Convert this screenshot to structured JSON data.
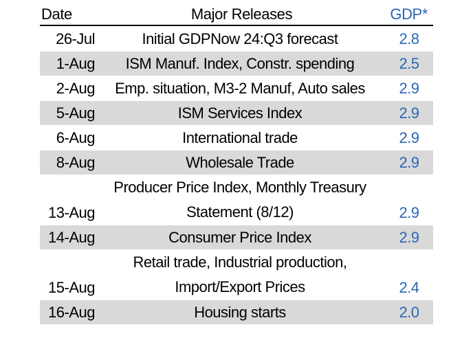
{
  "header": {
    "date": "Date",
    "releases": "Major Releases",
    "gdp": "GDP*"
  },
  "rows": [
    {
      "date": "26-Jul",
      "release_lines": [
        "Initial GDPNow 24:Q3 forecast"
      ],
      "gdp": "2.8",
      "shaded": false
    },
    {
      "date": "1-Aug",
      "release_lines": [
        "ISM Manuf. Index, Constr. spending"
      ],
      "gdp": "2.5",
      "shaded": true
    },
    {
      "date": "2-Aug",
      "release_lines": [
        "Emp. situation, M3-2 Manuf, Auto sales"
      ],
      "gdp": "2.9",
      "shaded": false
    },
    {
      "date": "5-Aug",
      "release_lines": [
        "ISM Services Index"
      ],
      "gdp": "2.9",
      "shaded": true
    },
    {
      "date": "6-Aug",
      "release_lines": [
        "International trade"
      ],
      "gdp": "2.9",
      "shaded": false
    },
    {
      "date": "8-Aug",
      "release_lines": [
        "Wholesale Trade"
      ],
      "gdp": "2.9",
      "shaded": true
    },
    {
      "date": "13-Aug",
      "release_lines": [
        "Producer Price Index, Monthly Treasury",
        "Statement (8/12)"
      ],
      "gdp": "2.9",
      "shaded": false
    },
    {
      "date": "14-Aug",
      "release_lines": [
        "Consumer Price Index"
      ],
      "gdp": "2.9",
      "shaded": true
    },
    {
      "date": "15-Aug",
      "release_lines": [
        "Retail trade, Industrial production,",
        "Import/Export Prices"
      ],
      "gdp": "2.4",
      "shaded": false
    },
    {
      "date": "16-Aug",
      "release_lines": [
        "Housing starts"
      ],
      "gdp": "2.0",
      "shaded": true
    }
  ],
  "colors": {
    "gdp_text": "#2a66b5",
    "shade": "#d9d9d9"
  }
}
